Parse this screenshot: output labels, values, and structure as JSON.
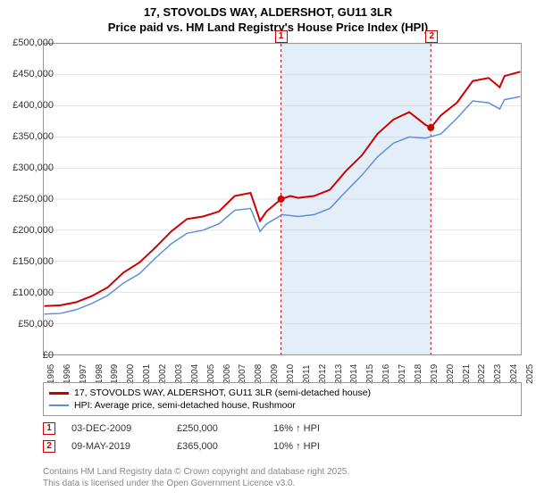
{
  "title_line1": "17, STOVOLDS WAY, ALDERSHOT, GU11 3LR",
  "title_line2": "Price paid vs. HM Land Registry's House Price Index (HPI)",
  "chart": {
    "type": "line",
    "background_color": "#ffffff",
    "band_color": "#e4eef8",
    "grid_color": "#cccccc",
    "border_color": "#999999",
    "x_years": [
      1995,
      1996,
      1997,
      1998,
      1999,
      2000,
      2001,
      2002,
      2003,
      2004,
      2005,
      2006,
      2007,
      2008,
      2009,
      2010,
      2011,
      2012,
      2013,
      2014,
      2015,
      2016,
      2017,
      2018,
      2019,
      2020,
      2021,
      2022,
      2023,
      2024,
      2025
    ],
    "ylim": [
      0,
      500000
    ],
    "ytick_step": 50000,
    "y_ticks": [
      "£0",
      "£50,000",
      "£100,000",
      "£150,000",
      "£200,000",
      "£250,000",
      "£300,000",
      "£350,000",
      "£400,000",
      "£450,000",
      "£500,000"
    ],
    "series": [
      {
        "name": "price_paid",
        "color": "#cc0000",
        "width": 2,
        "legend": "17, STOVOLDS WAY, ALDERSHOT, GU11 3LR (semi-detached house)",
        "points": [
          [
            1995,
            78000
          ],
          [
            1996,
            79000
          ],
          [
            1997,
            84000
          ],
          [
            1998,
            94000
          ],
          [
            1999,
            108000
          ],
          [
            2000,
            132000
          ],
          [
            2001,
            148000
          ],
          [
            2002,
            172000
          ],
          [
            2003,
            198000
          ],
          [
            2004,
            218000
          ],
          [
            2005,
            222000
          ],
          [
            2006,
            230000
          ],
          [
            2007,
            255000
          ],
          [
            2008,
            260000
          ],
          [
            2008.6,
            215000
          ],
          [
            2009,
            230000
          ],
          [
            2009.92,
            250000
          ],
          [
            2010.5,
            255000
          ],
          [
            2011,
            252000
          ],
          [
            2012,
            255000
          ],
          [
            2013,
            265000
          ],
          [
            2014,
            295000
          ],
          [
            2015,
            320000
          ],
          [
            2016,
            355000
          ],
          [
            2017,
            378000
          ],
          [
            2018,
            390000
          ],
          [
            2019,
            370000
          ],
          [
            2019.36,
            365000
          ],
          [
            2020,
            385000
          ],
          [
            2021,
            405000
          ],
          [
            2022,
            440000
          ],
          [
            2023,
            445000
          ],
          [
            2023.7,
            430000
          ],
          [
            2024,
            448000
          ],
          [
            2025,
            455000
          ]
        ],
        "sale_markers": [
          {
            "x": 2009.92,
            "y": 250000
          },
          {
            "x": 2019.36,
            "y": 365000
          }
        ]
      },
      {
        "name": "hpi",
        "color": "#5b8fd6",
        "width": 1.5,
        "legend": "HPI: Average price, semi-detached house, Rushmoor",
        "points": [
          [
            1995,
            65000
          ],
          [
            1996,
            66000
          ],
          [
            1997,
            72000
          ],
          [
            1998,
            82000
          ],
          [
            1999,
            95000
          ],
          [
            2000,
            115000
          ],
          [
            2001,
            130000
          ],
          [
            2002,
            155000
          ],
          [
            2003,
            178000
          ],
          [
            2004,
            195000
          ],
          [
            2005,
            200000
          ],
          [
            2006,
            210000
          ],
          [
            2007,
            232000
          ],
          [
            2008,
            235000
          ],
          [
            2008.6,
            198000
          ],
          [
            2009,
            210000
          ],
          [
            2010,
            225000
          ],
          [
            2011,
            222000
          ],
          [
            2012,
            225000
          ],
          [
            2013,
            235000
          ],
          [
            2014,
            262000
          ],
          [
            2015,
            288000
          ],
          [
            2016,
            318000
          ],
          [
            2017,
            340000
          ],
          [
            2018,
            350000
          ],
          [
            2019,
            348000
          ],
          [
            2020,
            355000
          ],
          [
            2021,
            380000
          ],
          [
            2022,
            408000
          ],
          [
            2023,
            405000
          ],
          [
            2023.7,
            395000
          ],
          [
            2024,
            410000
          ],
          [
            2025,
            415000
          ]
        ]
      }
    ],
    "event_lines": [
      {
        "label": "1",
        "x": 2009.92
      },
      {
        "label": "2",
        "x": 2019.36
      }
    ]
  },
  "sales": [
    {
      "marker": "1",
      "date": "03-DEC-2009",
      "price": "£250,000",
      "delta": "16% ↑ HPI"
    },
    {
      "marker": "2",
      "date": "09-MAY-2019",
      "price": "£365,000",
      "delta": "10% ↑ HPI"
    }
  ],
  "footer_line1": "Contains HM Land Registry data © Crown copyright and database right 2025.",
  "footer_line2": "This data is licensed under the Open Government Licence v3.0.",
  "label_fontsize": 11
}
